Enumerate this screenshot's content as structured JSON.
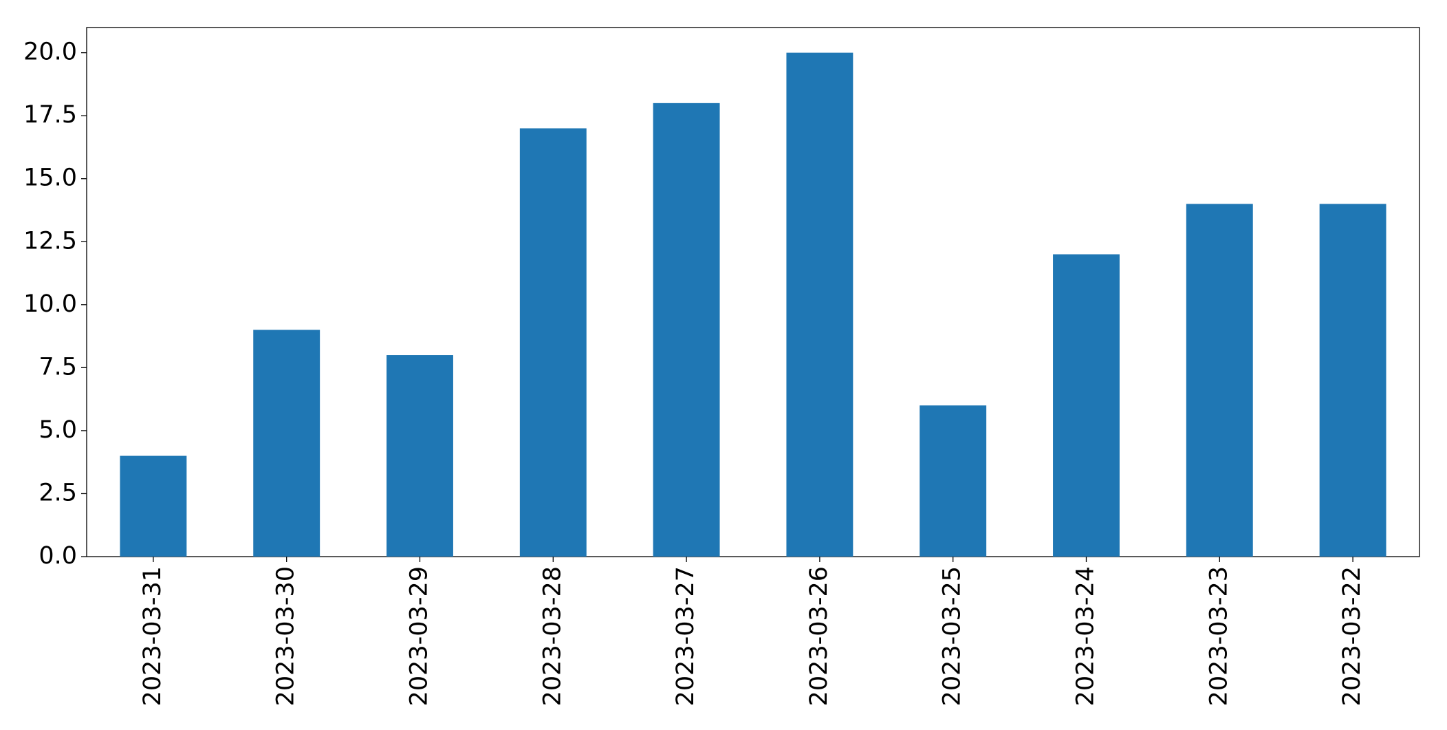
{
  "chart_data": {
    "type": "bar",
    "categories": [
      "2023-03-31",
      "2023-03-30",
      "2023-03-29",
      "2023-03-28",
      "2023-03-27",
      "2023-03-26",
      "2023-03-25",
      "2023-03-24",
      "2023-03-23",
      "2023-03-22"
    ],
    "values": [
      4,
      9,
      8,
      17,
      18,
      20,
      6,
      12,
      14,
      14
    ],
    "color": "#1f77b4",
    "ylim": [
      0,
      21
    ],
    "yticks": [
      {
        "value": 0,
        "label": "0.0"
      },
      2.5,
      {
        "value": 5,
        "label": "5.0"
      },
      7.5,
      {
        "value": 10,
        "label": "10.0"
      },
      12.5,
      {
        "value": 15,
        "label": "15.0"
      },
      17.5,
      {
        "value": 20,
        "label": "20.0"
      }
    ],
    "grid": false
  }
}
